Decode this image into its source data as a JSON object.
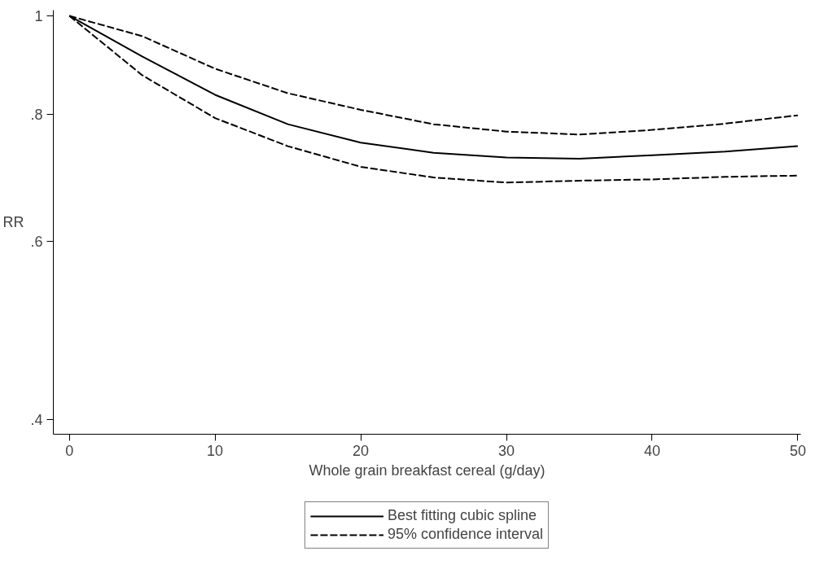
{
  "chart_data": {
    "type": "line",
    "xlabel": "Whole grain breakfast cereal (g/day)",
    "ylabel": "RR",
    "x": [
      0,
      5,
      10,
      15,
      20,
      25,
      30,
      35,
      40,
      45,
      50
    ],
    "series": [
      {
        "name": "Best fitting cubic spline",
        "color": "#000000",
        "line_style": "solid",
        "values": [
          1,
          0.912,
          0.836,
          0.782,
          0.75,
          0.733,
          0.725,
          0.723,
          0.729,
          0.735,
          0.744
        ]
      },
      {
        "name": "95% confidence interval",
        "color": "#000000",
        "line_style": "dashed",
        "values": [
          1,
          0.955,
          0.887,
          0.839,
          0.808,
          0.782,
          0.769,
          0.764,
          0.772,
          0.783,
          0.798
        ]
      },
      {
        "color": "#000000",
        "line_style": "dashed",
        "values": [
          1,
          0.874,
          0.793,
          0.744,
          0.71,
          0.693,
          0.685,
          0.688,
          0.69,
          0.694,
          0.696
        ]
      }
    ],
    "log": "y",
    "xlim": [
      -1.1,
      50.2
    ],
    "ylim": [
      0.387,
      1.013
    ],
    "xticks": [
      0,
      10,
      20,
      30,
      40,
      50
    ],
    "yticks": [
      {
        "value": 0.4,
        "label": ".4"
      },
      {
        "value": 0.6,
        "label": ".6"
      },
      {
        "value": 0.8,
        "label": ".8"
      },
      1
    ],
    "grid": false,
    "legend": "bottom",
    "marker": "none"
  }
}
